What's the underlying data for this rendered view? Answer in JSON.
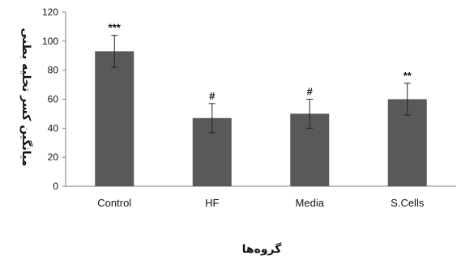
{
  "chart_data": {
    "type": "bar",
    "categories": [
      "Control",
      "HF",
      "Media",
      "S.Cells"
    ],
    "values": [
      93,
      47,
      50,
      60
    ],
    "errors": [
      11,
      10,
      10,
      11
    ],
    "significance": [
      "***",
      "#",
      "#",
      "**"
    ],
    "xlabel": "گروه‌ها",
    "ylabel": "میانگین کسر تخلیه بطنی",
    "ylim": [
      0,
      120
    ],
    "yticks": [
      0,
      20,
      40,
      60,
      80,
      100,
      120
    ],
    "grid": false,
    "bar_color": "#595959",
    "error_bar_color": "#222222"
  }
}
